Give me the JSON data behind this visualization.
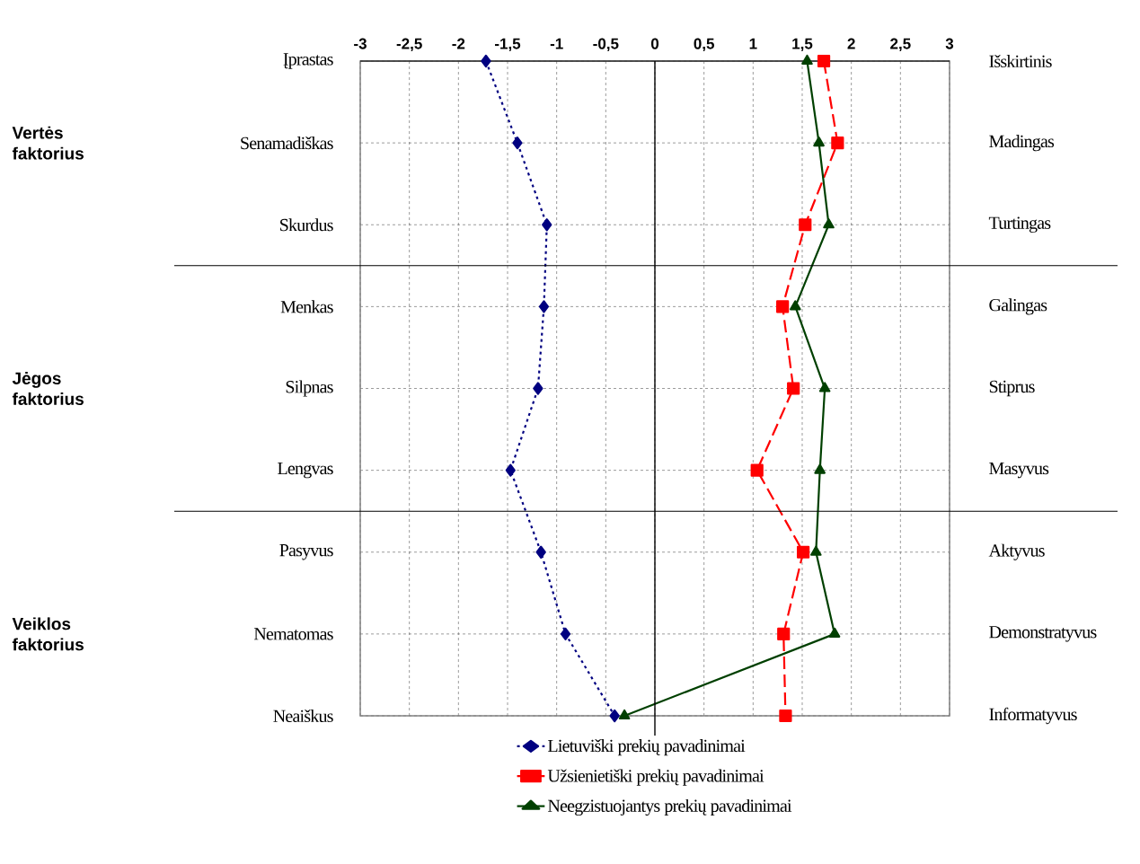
{
  "chart_data": {
    "type": "line",
    "orientation": "horizontal",
    "categories": [
      "Įprastas",
      "Senamadiškas",
      "Skurdus",
      "Menkas",
      "Silpnas",
      "Lengvas",
      "Pasyvus",
      "Nematomas",
      "Neaiškus"
    ],
    "y2_categories": [
      "Išskirtinis",
      "Madingas",
      "Turtingas",
      "Galingas",
      "Stiprus",
      "Masyvus",
      "Aktyvus",
      "Demonstratyvus",
      "Informatyvus"
    ],
    "series": [
      {
        "name": "Lietuviški prekių pavadinimai",
        "color": "#000080",
        "marker": "diamond",
        "line_style": "dotted",
        "values": [
          -1.72,
          -1.4,
          -1.1,
          -1.13,
          -1.19,
          -1.47,
          -1.16,
          -0.91,
          -0.41
        ]
      },
      {
        "name": "Užsienietiški prekių pavadinimai",
        "color": "#ff0000",
        "marker": "square",
        "line_style": "dashed",
        "values": [
          1.72,
          1.86,
          1.53,
          1.3,
          1.41,
          1.04,
          1.51,
          1.31,
          1.33
        ]
      },
      {
        "name": "Neegzistuojantys prekių pavadinimai",
        "color": "#004000",
        "marker": "triangle",
        "line_style": "solid",
        "values": [
          1.55,
          1.67,
          1.77,
          1.43,
          1.73,
          1.68,
          1.64,
          1.83,
          -0.31
        ]
      }
    ],
    "xlim": [
      -3,
      3
    ],
    "xticks": [
      -3,
      {
        "value": -2.5,
        "label": "-2,5"
      },
      -2,
      {
        "value": -1.5,
        "label": "-1,5"
      },
      -1,
      {
        "value": -0.5,
        "label": "-0,5"
      },
      0,
      {
        "value": 0.5,
        "label": "0,5"
      },
      1,
      {
        "value": 1.5,
        "label": "1,5"
      },
      2,
      {
        "value": 2.5,
        "label": "2,5"
      },
      3
    ],
    "ref_lines": [
      {
        "axis": "x",
        "value": 0,
        "color": "#000000",
        "line_style": "solid"
      }
    ],
    "annotations": [
      "Vertės faktorius",
      "Jėgos faktorius",
      "Veiklos faktorius"
    ],
    "grid": true,
    "legend": "bottom"
  }
}
